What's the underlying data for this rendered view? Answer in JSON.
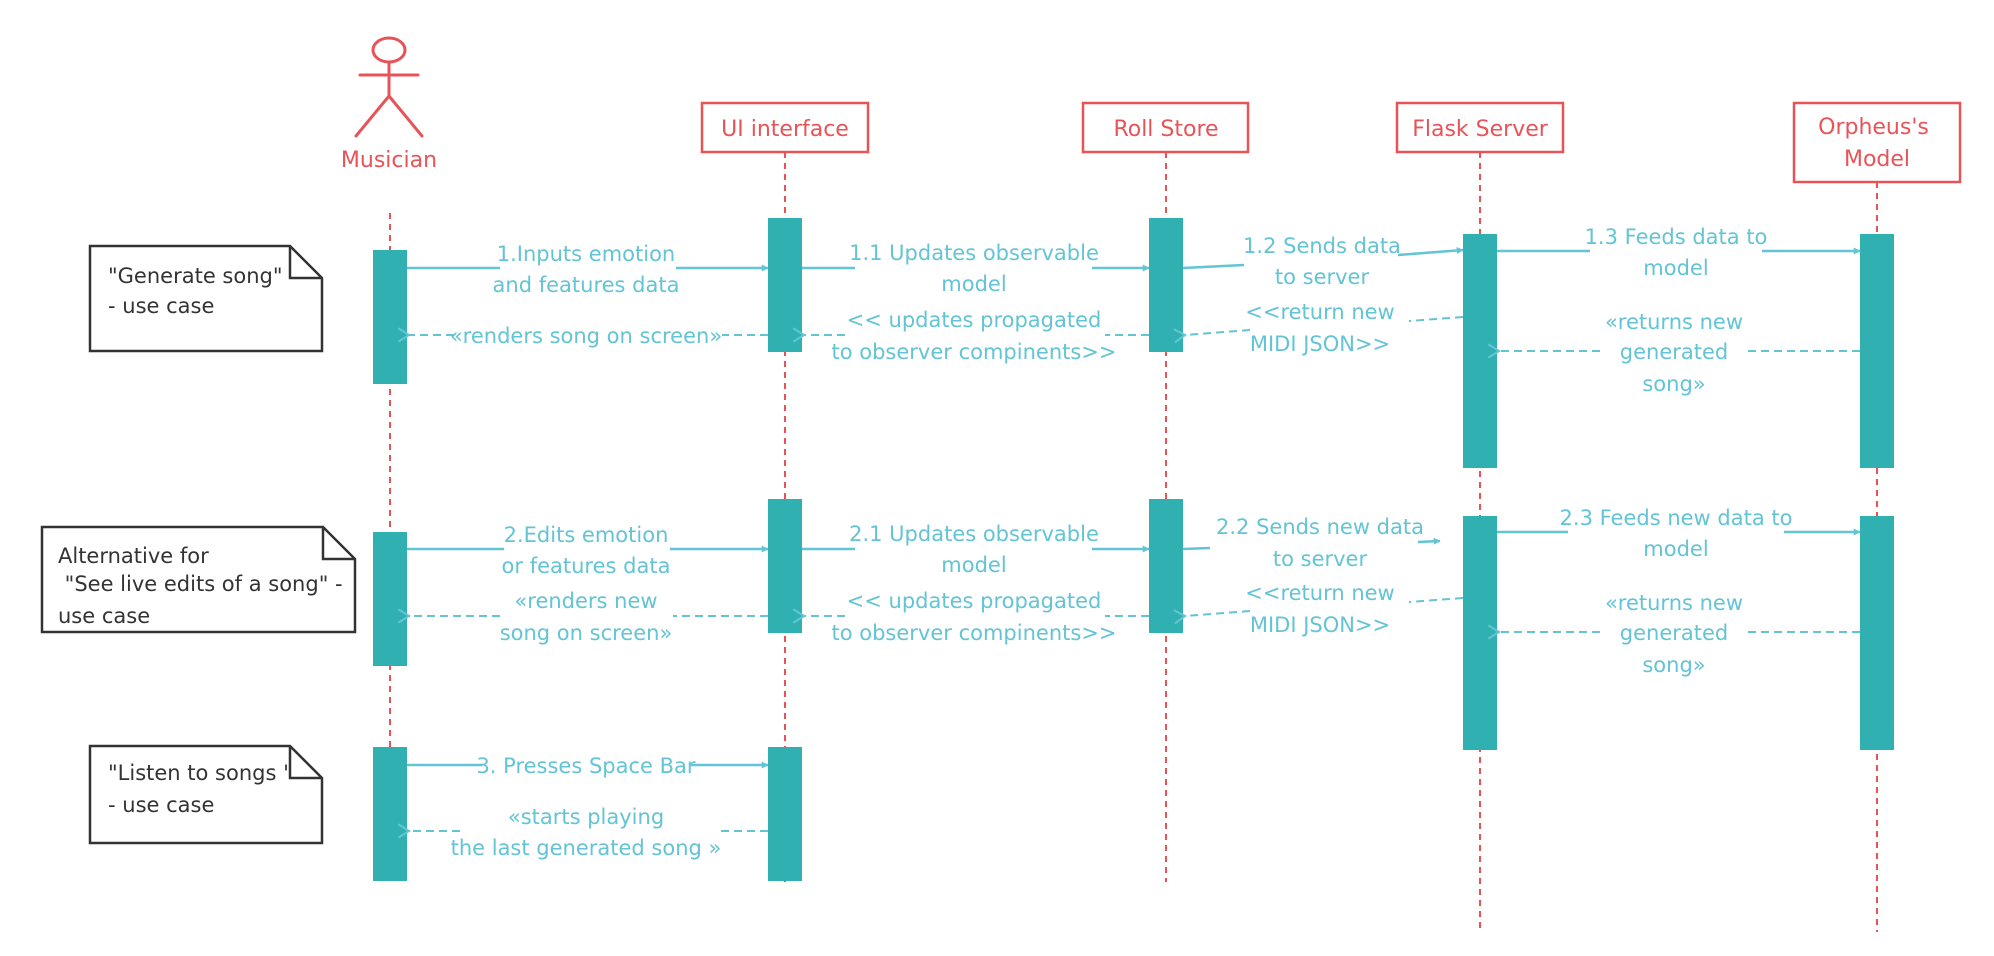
{
  "actor": {
    "name": "Musician"
  },
  "participants": [
    {
      "id": "ui",
      "lines": [
        "UI interface"
      ]
    },
    {
      "id": "store",
      "lines": [
        "Roll Store"
      ]
    },
    {
      "id": "flask",
      "lines": [
        "Flask Server"
      ]
    },
    {
      "id": "model",
      "lines": [
        "Orpheus's",
        "Model"
      ]
    }
  ],
  "notes": [
    {
      "id": "generate",
      "lines": [
        "\"Generate song\"",
        "- use case"
      ]
    },
    {
      "id": "live",
      "lines": [
        "Alternative for",
        " \"See live edits of a song\" -",
        "use case"
      ]
    },
    {
      "id": "listen",
      "lines": [
        "\"Listen to songs \"",
        "- use case"
      ]
    }
  ],
  "messages": [
    {
      "id": "m1",
      "lines": [
        "1.Inputs emotion",
        "and features data"
      ]
    },
    {
      "id": "m1r",
      "lines": [
        "«renders song on screen»"
      ]
    },
    {
      "id": "m11",
      "lines": [
        "1.1 Updates observable",
        "model"
      ]
    },
    {
      "id": "m11r",
      "lines": [
        "<< updates propagated",
        "to observer compinents>>"
      ]
    },
    {
      "id": "m12",
      "lines": [
        "1.2 Sends data",
        "to server"
      ]
    },
    {
      "id": "m12r",
      "lines": [
        "<<return new",
        "MIDI JSON>>"
      ]
    },
    {
      "id": "m13",
      "lines": [
        "1.3 Feeds data to",
        "model"
      ]
    },
    {
      "id": "m13r",
      "lines": [
        "«returns new",
        "generated",
        "song»"
      ]
    },
    {
      "id": "m2",
      "lines": [
        "2.Edits emotion",
        "or features data"
      ]
    },
    {
      "id": "m2r",
      "lines": [
        "«renders new",
        "song on screen»"
      ]
    },
    {
      "id": "m21",
      "lines": [
        "2.1 Updates observable",
        "model"
      ]
    },
    {
      "id": "m21r",
      "lines": [
        "<< updates propagated",
        "to observer compinents>>"
      ]
    },
    {
      "id": "m22",
      "lines": [
        "2.2 Sends new data",
        "to server"
      ]
    },
    {
      "id": "m22r",
      "lines": [
        "<<return new",
        "MIDI JSON>>"
      ]
    },
    {
      "id": "m23",
      "lines": [
        "2.3 Feeds new data to",
        "model"
      ]
    },
    {
      "id": "m23r",
      "lines": [
        "«returns new",
        "generated",
        "song»"
      ]
    },
    {
      "id": "m3",
      "lines": [
        "3. Presses Space Bar"
      ]
    },
    {
      "id": "m3r",
      "lines": [
        "«starts playing",
        "the last generated song »"
      ]
    }
  ],
  "colors": {
    "lifeline": "#e85358",
    "activation": "#30b0b0",
    "message": "#62c4d4",
    "note_border": "#333333"
  }
}
